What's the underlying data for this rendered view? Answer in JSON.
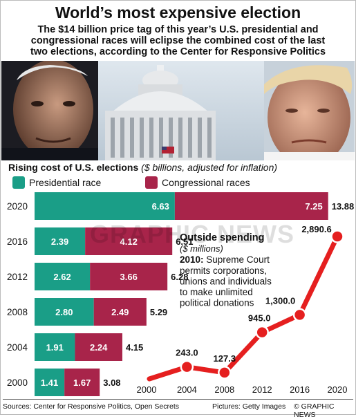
{
  "header": {
    "title": "World’s most expensive election",
    "subtitle_lines": [
      "The $14 billion price tag of this year’s U.S. presidential and",
      "congressional races will eclipse the combined cost of the last",
      "two elections, according to the Center for Responsive Politics"
    ]
  },
  "chart_heading": {
    "text": "Rising cost of U.S. elections",
    "unit": "($ billions, adjusted for inflation)"
  },
  "legend": [
    {
      "label": "Presidential race",
      "color": "#1a9e87"
    },
    {
      "label": "Congressional races",
      "color": "#a8244a"
    }
  ],
  "chart_data": [
    {
      "type": "bar",
      "orientation": "horizontal",
      "stacked": true,
      "title": "Rising cost of U.S. elections",
      "unit": "$ billions, adjusted for inflation",
      "categories": [
        "2020",
        "2016",
        "2012",
        "2008",
        "2004",
        "2000"
      ],
      "series": [
        {
          "name": "Presidential race",
          "color": "#1a9e87",
          "values": [
            6.63,
            2.39,
            2.62,
            2.8,
            1.91,
            1.41
          ]
        },
        {
          "name": "Congressional races",
          "color": "#a8244a",
          "values": [
            7.25,
            4.12,
            3.66,
            2.49,
            2.24,
            1.67
          ]
        }
      ],
      "totals": [
        13.88,
        6.51,
        6.28,
        5.29,
        4.15,
        3.08
      ],
      "xlim": [
        0,
        14
      ]
    },
    {
      "type": "line",
      "title": "Outside spending",
      "unit": "($ millions)",
      "x": [
        2000,
        2004,
        2008,
        2012,
        2016,
        2020
      ],
      "x_labels": [
        "2000",
        "2004",
        "2008",
        "2012",
        "2016",
        "2020"
      ],
      "values": [
        0,
        243.0,
        127.3,
        945.0,
        1300.0,
        2890.6
      ],
      "value_labels": [
        "",
        "243.0",
        "127.3",
        "945.0",
        "1,300.0",
        "2,890.6"
      ],
      "color": "#e51f1f",
      "annotation": {
        "bold": "2010:",
        "lines": [
          "Supreme Court",
          "permits corporations,",
          "unions and individuals",
          "to make unlimited",
          "political donations"
        ]
      },
      "ylim": [
        0,
        3000
      ]
    }
  ],
  "watermark": "GRAPHIC NEWS",
  "footer": {
    "sources": "Sources: Center for Responsive Politics, Open Secrets",
    "pictures": "Pictures: Getty Images",
    "credit": "© GRAPHIC NEWS"
  }
}
